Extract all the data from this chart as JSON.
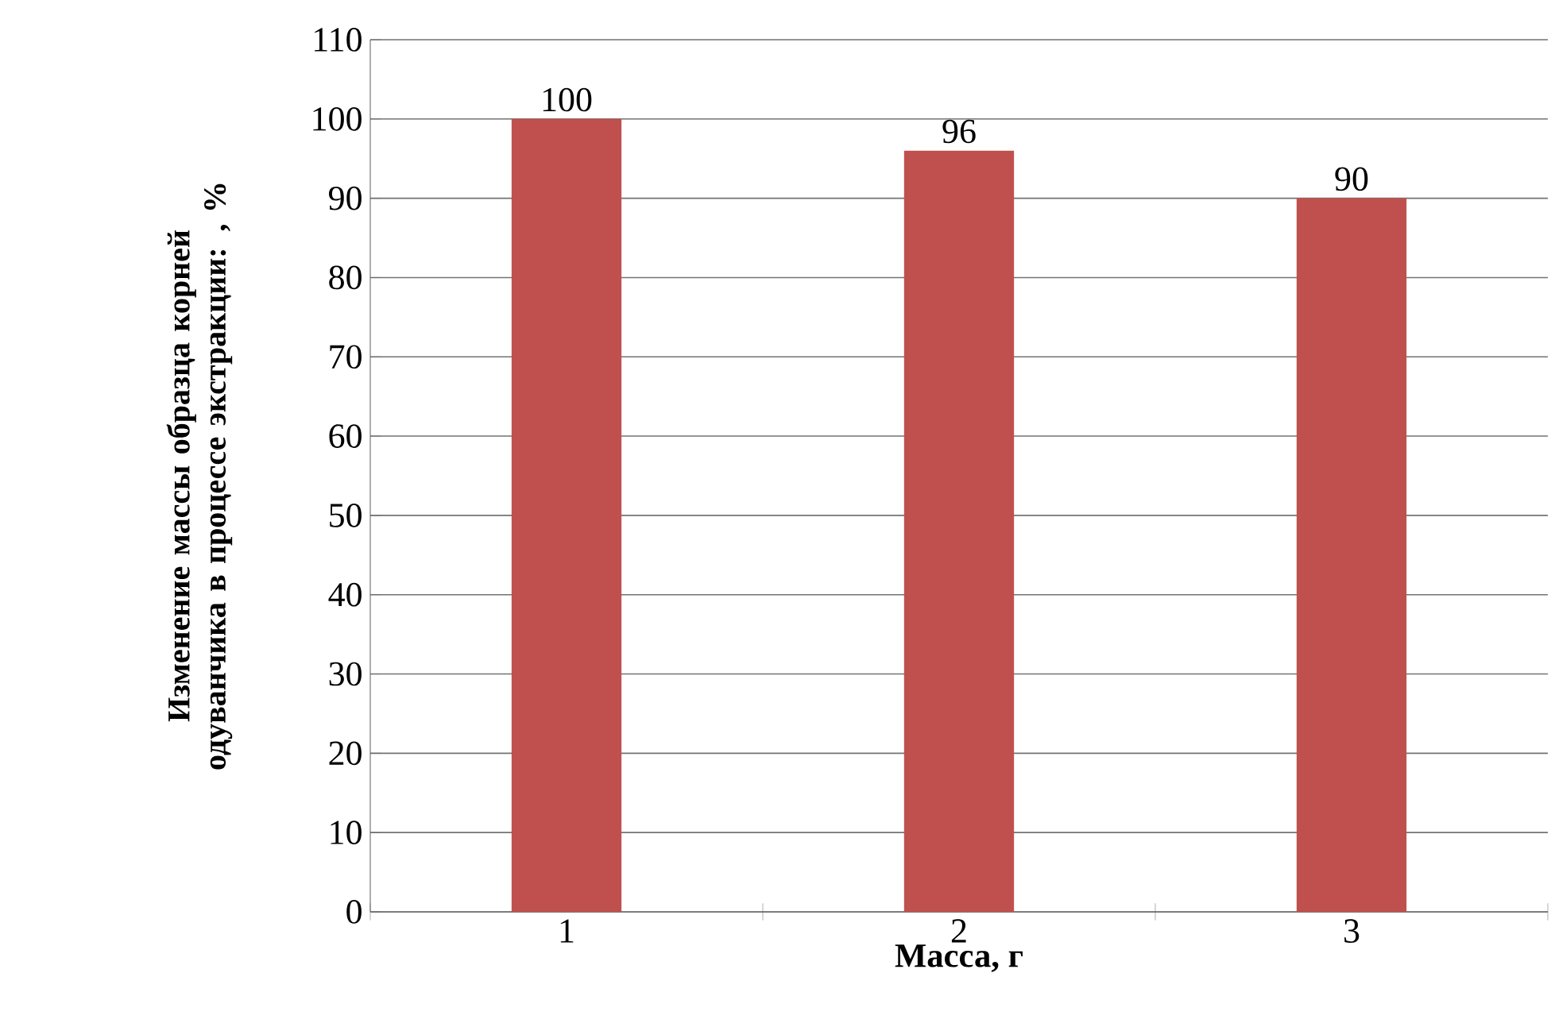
{
  "chart_data": {
    "type": "bar",
    "categories": [
      "1",
      "2",
      "3"
    ],
    "values": [
      100,
      96,
      90
    ],
    "color": "#c0504d",
    "xlabel": "Масса, г",
    "ylabel": "Изменение массы образца корней одуванчика в процессе экстракции: , %",
    "ylim": [
      0,
      110
    ],
    "yticks": [
      0,
      10,
      20,
      30,
      40,
      50,
      60,
      70,
      80,
      90,
      100,
      110
    ],
    "grid": "y",
    "data_labels": true
  }
}
